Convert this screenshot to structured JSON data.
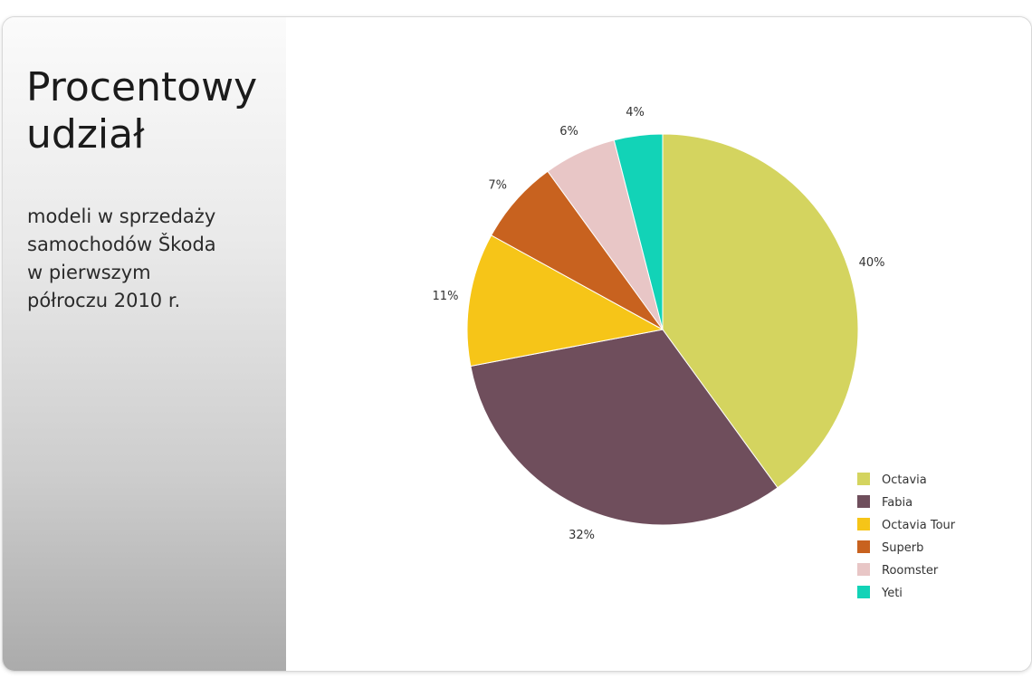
{
  "sidebar": {
    "title_lines": [
      "Procentowy",
      "udział"
    ],
    "subtitle_lines": [
      "modeli w sprzedaży",
      "samochodów Škoda",
      "w pierwszym",
      "półroczu 2010 r."
    ]
  },
  "chart_data": {
    "type": "pie",
    "title": "",
    "slices": [
      {
        "label": "Octavia",
        "value": 40,
        "value_label": "40%",
        "color": "#d4d45f"
      },
      {
        "label": "Fabia",
        "value": 32,
        "value_label": "32%",
        "color": "#6f4e5c"
      },
      {
        "label": "Octavia Tour",
        "value": 11,
        "value_label": "11%",
        "color": "#f6c518"
      },
      {
        "label": "Superb",
        "value": 7,
        "value_label": "7%",
        "color": "#c8621f"
      },
      {
        "label": "Roomster",
        "value": 6,
        "value_label": "6%",
        "color": "#e8c6c6"
      },
      {
        "label": "Yeti",
        "value": 4,
        "value_label": "4%",
        "color": "#12d3b7"
      }
    ],
    "start": "12 o'clock",
    "direction": "clockwise",
    "legend_position": "bottom-right"
  }
}
